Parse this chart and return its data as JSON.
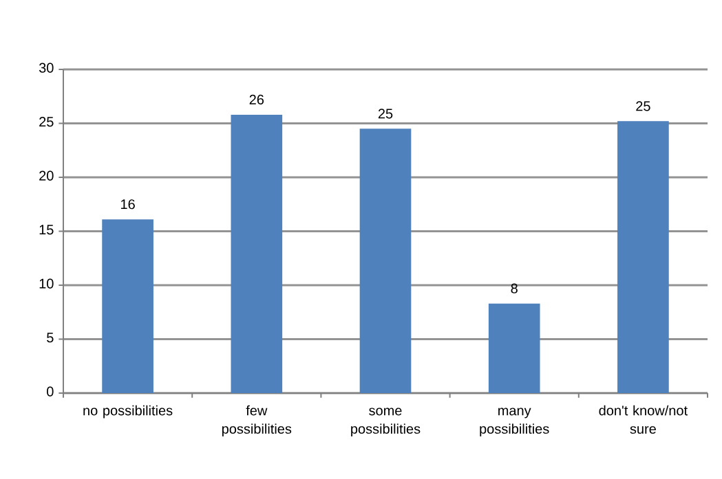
{
  "chart_data": {
    "type": "bar",
    "categories": [
      "no possibilities",
      "few possibilities",
      "some possibilities",
      "many possibilities",
      "don't know/not sure"
    ],
    "values": [
      16.1,
      25.8,
      24.5,
      8.3,
      25.2
    ],
    "value_labels": [
      "16",
      "26",
      "25",
      "8",
      "25"
    ],
    "color": "#4f81bd",
    "ylim": [
      0,
      30
    ],
    "yticks": [
      0,
      5,
      10,
      15,
      20,
      25,
      30
    ],
    "grid": "y"
  }
}
